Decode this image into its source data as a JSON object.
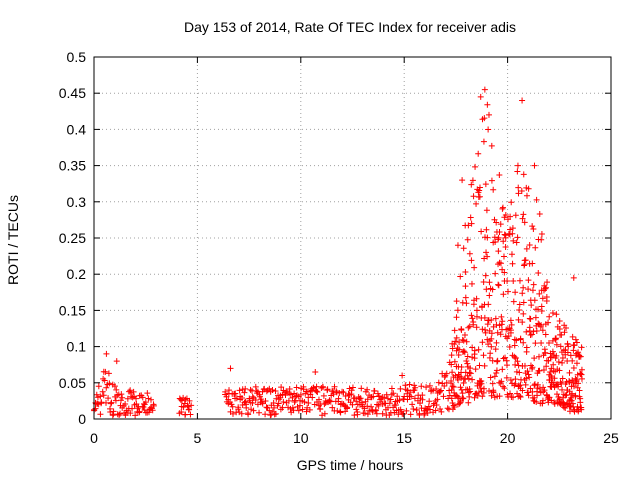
{
  "chart_data": {
    "type": "scatter",
    "title": "Day 153 of 2014, Rate Of TEC Index for receiver adis",
    "xlabel": "GPS time / hours",
    "ylabel": "ROTI / TECUs",
    "xlim": [
      0,
      25
    ],
    "ylim": [
      0,
      0.5
    ],
    "xticks": [
      "0",
      "5",
      "10",
      "15",
      "20",
      "25"
    ],
    "yticks": [
      "0",
      "0.05",
      "0.1",
      "0.15",
      "0.2",
      "0.25",
      "0.3",
      "0.35",
      "0.4",
      "0.45",
      "0.5"
    ],
    "grid": true,
    "marker": "plus",
    "color": "#ff0000",
    "series": [
      {
        "name": "ROTI",
        "profile": [
          {
            "x": 0.0,
            "lo": 0.005,
            "hi": 0.03
          },
          {
            "x": 0.3,
            "lo": 0.005,
            "hi": 0.05
          },
          {
            "x": 0.5,
            "lo": 0.01,
            "hi": 0.09
          },
          {
            "x": 0.8,
            "lo": 0.005,
            "hi": 0.06
          },
          {
            "x": 1.2,
            "lo": 0.005,
            "hi": 0.04
          },
          {
            "x": 2.0,
            "lo": 0.005,
            "hi": 0.04
          },
          {
            "x": 2.8,
            "lo": 0.005,
            "hi": 0.035
          },
          {
            "x": 4.1,
            "lo": 0.005,
            "hi": 0.03
          },
          {
            "x": 4.6,
            "lo": 0.005,
            "hi": 0.03
          },
          {
            "x": 6.3,
            "lo": 0.005,
            "hi": 0.04
          },
          {
            "x": 8.0,
            "lo": 0.005,
            "hi": 0.045
          },
          {
            "x": 10.0,
            "lo": 0.005,
            "hi": 0.045
          },
          {
            "x": 12.0,
            "lo": 0.005,
            "hi": 0.045
          },
          {
            "x": 14.0,
            "lo": 0.005,
            "hi": 0.04
          },
          {
            "x": 15.0,
            "lo": 0.005,
            "hi": 0.05
          },
          {
            "x": 16.5,
            "lo": 0.005,
            "hi": 0.045
          },
          {
            "x": 17.2,
            "lo": 0.01,
            "hi": 0.08
          },
          {
            "x": 17.6,
            "lo": 0.02,
            "hi": 0.2
          },
          {
            "x": 18.0,
            "lo": 0.02,
            "hi": 0.3
          },
          {
            "x": 18.5,
            "lo": 0.03,
            "hi": 0.38
          },
          {
            "x": 19.0,
            "lo": 0.03,
            "hi": 0.45
          },
          {
            "x": 19.5,
            "lo": 0.03,
            "hi": 0.36
          },
          {
            "x": 20.0,
            "lo": 0.03,
            "hi": 0.28
          },
          {
            "x": 20.5,
            "lo": 0.03,
            "hi": 0.36
          },
          {
            "x": 21.0,
            "lo": 0.03,
            "hi": 0.33
          },
          {
            "x": 21.5,
            "lo": 0.02,
            "hi": 0.3
          },
          {
            "x": 22.0,
            "lo": 0.02,
            "hi": 0.18
          },
          {
            "x": 22.5,
            "lo": 0.02,
            "hi": 0.14
          },
          {
            "x": 23.0,
            "lo": 0.01,
            "hi": 0.12
          },
          {
            "x": 23.6,
            "lo": 0.01,
            "hi": 0.1
          }
        ],
        "gaps": [
          [
            2.9,
            4.1
          ],
          [
            4.7,
            6.3
          ]
        ],
        "outliers": [
          {
            "x": 0.6,
            "y": 0.09
          },
          {
            "x": 1.1,
            "y": 0.08
          },
          {
            "x": 6.6,
            "y": 0.07
          },
          {
            "x": 10.7,
            "y": 0.065
          },
          {
            "x": 14.9,
            "y": 0.06
          },
          {
            "x": 17.8,
            "y": 0.33
          },
          {
            "x": 18.7,
            "y": 0.445
          },
          {
            "x": 18.9,
            "y": 0.455
          },
          {
            "x": 19.1,
            "y": 0.42
          },
          {
            "x": 20.7,
            "y": 0.44
          },
          {
            "x": 20.5,
            "y": 0.35
          },
          {
            "x": 21.3,
            "y": 0.35
          },
          {
            "x": 23.2,
            "y": 0.195
          },
          {
            "x": 17.6,
            "y": 0.24
          }
        ]
      }
    ]
  }
}
